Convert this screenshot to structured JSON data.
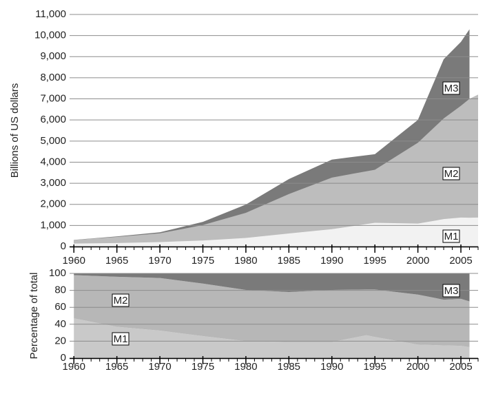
{
  "chart_data": [
    {
      "type": "area",
      "ylabel": "Billions of US dollars",
      "stacked": false,
      "grid": true,
      "x": [
        1960,
        1965,
        1970,
        1975,
        1980,
        1985,
        1990,
        1995,
        2000,
        2003,
        2005,
        2006,
        2007
      ],
      "series": [
        {
          "name": "M1",
          "color": "#f2f2f2",
          "values": [
            141,
            167,
            214,
            287,
            408,
            620,
            825,
            1127,
            1088,
            1300,
            1375,
            1367,
            1375
          ]
        },
        {
          "name": "M2",
          "color": "#bdbdbd",
          "values": [
            312,
            459,
            627,
            1020,
            1600,
            2490,
            3270,
            3640,
            4920,
            6070,
            6670,
            7000,
            7200
          ]
        },
        {
          "name": "M3",
          "color": "#7a7a7a",
          "values": [
            315,
            482,
            677,
            1170,
            1990,
            3200,
            4120,
            4380,
            6000,
            8880,
            9700,
            10300,
            null
          ]
        }
      ],
      "xlim": [
        1959.5,
        2007
      ],
      "ylim": [
        0,
        11000
      ],
      "xticks": [
        1960,
        1965,
        1970,
        1975,
        1980,
        1985,
        1990,
        1995,
        2000,
        2005
      ],
      "yticks": [
        0,
        {
          "value": 1000,
          "label": "1,000"
        },
        {
          "value": 2000,
          "label": "2,000"
        },
        {
          "value": 3000,
          "label": "3,000"
        },
        {
          "value": 4000,
          "label": "4,000"
        },
        {
          "value": 5000,
          "label": "5,000"
        },
        {
          "value": 6000,
          "label": "6,000"
        },
        {
          "value": 7000,
          "label": "7,000"
        },
        {
          "value": 8000,
          "label": "8,000"
        },
        {
          "value": 9000,
          "label": "9,000"
        },
        {
          "value": 10000,
          "label": "10,000"
        },
        {
          "value": 11000,
          "label": "11,000"
        }
      ]
    },
    {
      "type": "area",
      "ylabel": "Percentage of total",
      "stacked": true,
      "grid": true,
      "x": [
        1960,
        1965,
        1970,
        1975,
        1980,
        1985,
        1990,
        1994,
        1995,
        2000,
        2003,
        2005,
        2006
      ],
      "series": [
        {
          "name": "M1",
          "color": "#c9c9c9",
          "values": [
            47,
            37,
            32.5,
            26,
            20,
            19,
            19,
            27,
            25,
            16,
            15,
            14.5,
            13
          ]
        },
        {
          "name": "M2",
          "color": "#b7b7b7",
          "values": [
            51,
            59,
            62.1,
            62,
            60.5,
            59,
            61.5,
            54,
            56,
            59,
            54,
            55.5,
            54
          ]
        },
        {
          "name": "M3",
          "color": "#7a7a7a",
          "values": [
            2,
            4,
            5.4,
            12,
            19.5,
            22,
            19.5,
            19,
            19,
            25,
            31,
            30,
            33
          ]
        }
      ],
      "xlim": [
        1959.5,
        2007
      ],
      "ylim": [
        0,
        100
      ],
      "xticks": [
        1960,
        1965,
        1970,
        1975,
        1980,
        1985,
        1990,
        1995,
        2000,
        2005
      ],
      "yticks": [
        0,
        20,
        40,
        60,
        80,
        100
      ]
    }
  ]
}
